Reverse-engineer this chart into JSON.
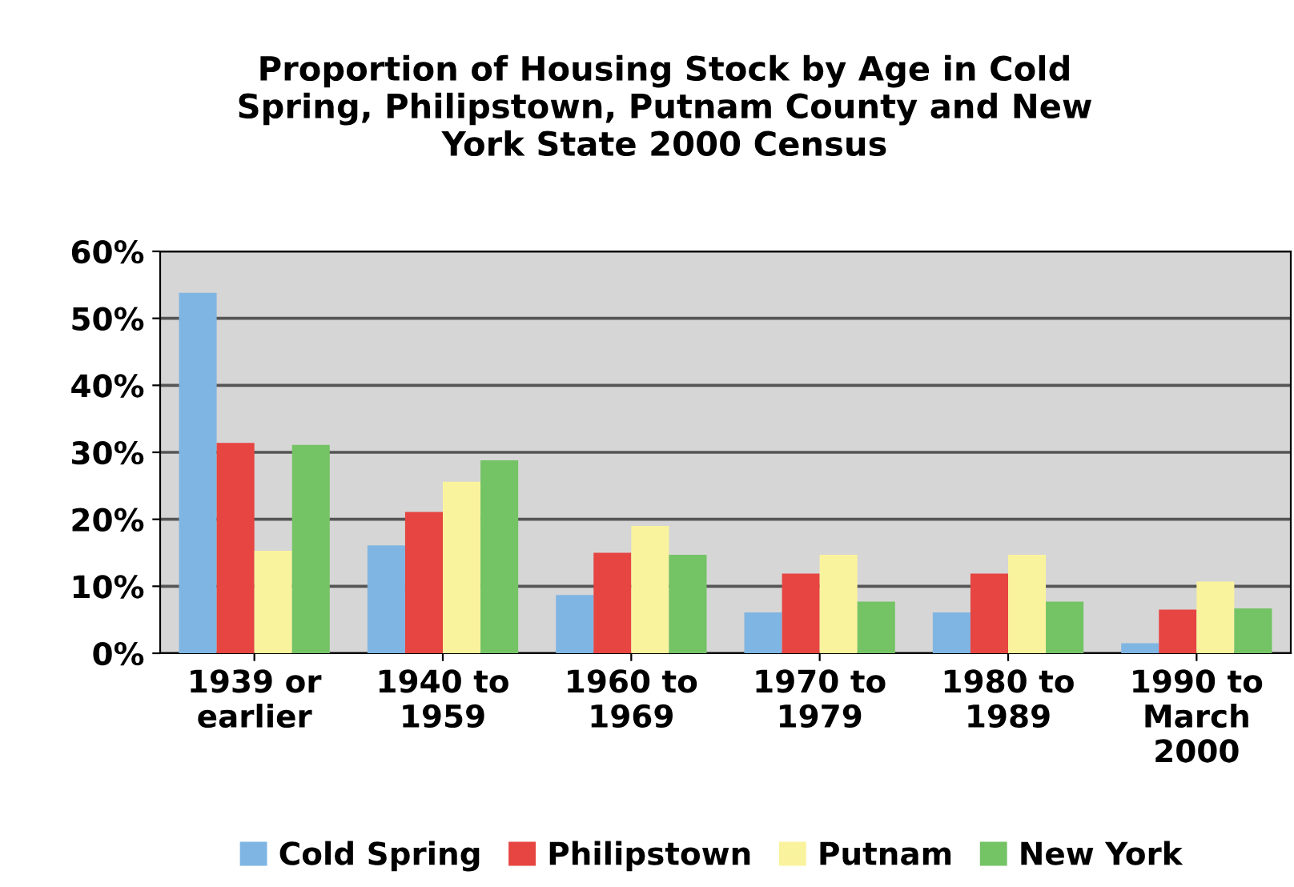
{
  "chart_data": {
    "type": "bar",
    "title": "Proportion of Housing Stock by Age in Cold\nSpring, Philipstown, Putnam County and New\nYork State 2000 Census",
    "categories": [
      "1939 or\nearlier",
      "1940 to\n1959",
      "1960 to\n1969",
      "1970 to\n1979",
      "1980 to\n1989",
      "1990 to\nMarch\n2000"
    ],
    "series": [
      {
        "name": "Cold Spring",
        "color": "#7fb5e3",
        "values": [
          53.8,
          16.1,
          8.7,
          6.1,
          6.1,
          1.5
        ]
      },
      {
        "name": "Philipstown",
        "color": "#e64541",
        "values": [
          31.4,
          21.1,
          15.0,
          11.9,
          11.9,
          6.5
        ]
      },
      {
        "name": "Putnam",
        "color": "#faf39d",
        "values": [
          15.3,
          25.6,
          19.0,
          14.7,
          14.7,
          10.7
        ]
      },
      {
        "name": "New York",
        "color": "#74c365",
        "values": [
          31.1,
          28.8,
          14.7,
          7.7,
          7.7,
          6.7
        ]
      }
    ],
    "ylim": [
      0,
      60
    ],
    "yticks": [
      {
        "value": 0,
        "label": "0%"
      },
      {
        "value": 10,
        "label": "10%"
      },
      {
        "value": 20,
        "label": "20%"
      },
      {
        "value": 30,
        "label": "30%"
      },
      {
        "value": 40,
        "label": "40%"
      },
      {
        "value": 50,
        "label": "50%"
      },
      {
        "value": 60,
        "label": "60%"
      }
    ],
    "grid": "y",
    "legend": "bottom"
  }
}
